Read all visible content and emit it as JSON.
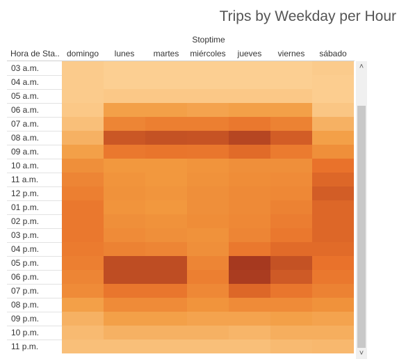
{
  "chart_data": {
    "type": "heatmap",
    "title": "Trips by Weekday per Hour",
    "column_title": "Stoptime",
    "row_header": "Hora de Sta..",
    "columns": [
      "domingo",
      "lunes",
      "martes",
      "miércoles",
      "jueves",
      "viernes",
      "sábado"
    ],
    "rows": [
      "03 a.m.",
      "04 a.m.",
      "05 a.m.",
      "06 a.m.",
      "07 a.m.",
      "08 a.m.",
      "09 a.m.",
      "10 a.m.",
      "11 a.m.",
      "12 p.m.",
      "01 p.m.",
      "02 p.m.",
      "03 p.m.",
      "04 p.m.",
      "05 p.m.",
      "06 p.m.",
      "07 p.m.",
      "08 p.m.",
      "09 p.m.",
      "10 p.m.",
      "11 p.m."
    ],
    "values": [
      [
        0.05,
        0.03,
        0.03,
        0.03,
        0.03,
        0.03,
        0.05
      ],
      [
        0.05,
        0.03,
        0.03,
        0.03,
        0.03,
        0.03,
        0.04
      ],
      [
        0.05,
        0.07,
        0.07,
        0.07,
        0.07,
        0.07,
        0.04
      ],
      [
        0.07,
        0.3,
        0.3,
        0.28,
        0.3,
        0.3,
        0.08
      ],
      [
        0.12,
        0.5,
        0.55,
        0.55,
        0.6,
        0.52,
        0.2
      ],
      [
        0.2,
        0.82,
        0.85,
        0.84,
        0.92,
        0.78,
        0.3
      ],
      [
        0.3,
        0.6,
        0.63,
        0.62,
        0.7,
        0.58,
        0.42
      ],
      [
        0.42,
        0.35,
        0.35,
        0.38,
        0.42,
        0.42,
        0.65
      ],
      [
        0.5,
        0.38,
        0.35,
        0.4,
        0.44,
        0.45,
        0.72
      ],
      [
        0.55,
        0.4,
        0.37,
        0.42,
        0.46,
        0.48,
        0.78
      ],
      [
        0.6,
        0.38,
        0.35,
        0.42,
        0.46,
        0.52,
        0.72
      ],
      [
        0.6,
        0.42,
        0.4,
        0.44,
        0.48,
        0.56,
        0.72
      ],
      [
        0.6,
        0.45,
        0.42,
        0.4,
        0.5,
        0.6,
        0.72
      ],
      [
        0.58,
        0.52,
        0.5,
        0.42,
        0.6,
        0.7,
        0.7
      ],
      [
        0.55,
        0.88,
        0.88,
        0.5,
        1.0,
        0.85,
        0.65
      ],
      [
        0.5,
        0.88,
        0.88,
        0.55,
        0.98,
        0.8,
        0.6
      ],
      [
        0.45,
        0.62,
        0.62,
        0.48,
        0.72,
        0.62,
        0.52
      ],
      [
        0.3,
        0.45,
        0.45,
        0.38,
        0.45,
        0.45,
        0.4
      ],
      [
        0.2,
        0.3,
        0.3,
        0.28,
        0.28,
        0.3,
        0.28
      ],
      [
        0.15,
        0.2,
        0.2,
        0.2,
        0.18,
        0.22,
        0.22
      ],
      [
        0.12,
        0.12,
        0.12,
        0.12,
        0.12,
        0.15,
        0.16
      ]
    ],
    "color_scale": [
      "#fdd49a",
      "#f29a3f",
      "#e8702a",
      "#a6391f"
    ],
    "grid": false,
    "legend": "none"
  },
  "scrollbar": {
    "up_glyph": "˄",
    "down_glyph": "˅"
  }
}
